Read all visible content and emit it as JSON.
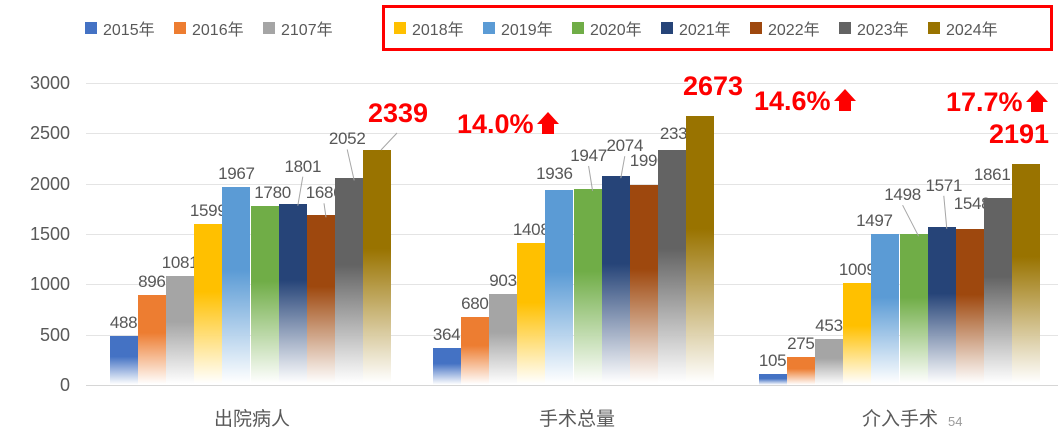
{
  "legend": {
    "items": [
      {
        "label": "2015年",
        "color": "#4472C4"
      },
      {
        "label": "2016年",
        "color": "#ED7D31"
      },
      {
        "label": "2107年",
        "color": "#A5A5A5"
      },
      {
        "label": "2018年",
        "color": "#FFC000"
      },
      {
        "label": "2019年",
        "color": "#5B9BD5"
      },
      {
        "label": "2020年",
        "color": "#70AD47"
      },
      {
        "label": "2021年",
        "color": "#264478"
      },
      {
        "label": "2022年",
        "color": "#9E480E"
      },
      {
        "label": "2023年",
        "color": "#636363"
      },
      {
        "label": "2024年",
        "color": "#997300"
      }
    ],
    "highlight_box": {
      "start_index": 3,
      "border_color": "#FF0000"
    }
  },
  "chart_data": {
    "type": "bar",
    "title": "",
    "categories": [
      "出院病人",
      "手术总量",
      "介入手术"
    ],
    "series": [
      {
        "name": "2015年",
        "color": "#4472C4",
        "values": [
          488,
          364,
          105
        ]
      },
      {
        "name": "2016年",
        "color": "#ED7D31",
        "values": [
          896,
          680,
          275
        ]
      },
      {
        "name": "2107年",
        "color": "#A5A5A5",
        "values": [
          1081,
          903,
          453
        ]
      },
      {
        "name": "2018年",
        "color": "#FFC000",
        "values": [
          1599,
          1408,
          1009
        ]
      },
      {
        "name": "2019年",
        "color": "#5B9BD5",
        "values": [
          1967,
          1936,
          1497
        ]
      },
      {
        "name": "2020年",
        "color": "#70AD47",
        "values": [
          1780,
          1947,
          1498
        ]
      },
      {
        "name": "2021年",
        "color": "#264478",
        "values": [
          1801,
          2074,
          1571
        ]
      },
      {
        "name": "2022年",
        "color": "#9E480E",
        "values": [
          1686,
          1990,
          1548
        ]
      },
      {
        "name": "2023年",
        "color": "#636363",
        "values": [
          2052,
          2332,
          1861
        ]
      },
      {
        "name": "2024年",
        "color": "#997300",
        "values": [
          2339,
          2673,
          2191
        ]
      }
    ],
    "ylim": [
      0,
      3000
    ],
    "ytick_labels": [
      "3000",
      "2500",
      "2000",
      "1500",
      "1000",
      "500",
      "0"
    ],
    "grid": true,
    "legend_position": "top",
    "value_label_color": "#575757",
    "annotation_color": "#FE0000"
  },
  "annotations": {
    "items": [
      {
        "category": "出院病人",
        "value": "2339",
        "pct": "14.0%"
      },
      {
        "category": "手术总量",
        "value": "2673",
        "pct": "14.6%"
      },
      {
        "category": "介入手术",
        "value": "2191",
        "pct": "17.7%"
      }
    ]
  },
  "footer": {
    "page_number": "54"
  }
}
